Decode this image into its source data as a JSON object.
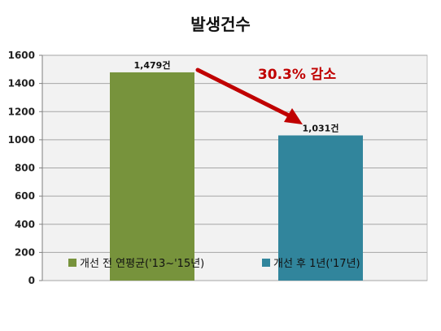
{
  "chart_data": {
    "type": "bar",
    "title": "발생건수",
    "categories": [
      "개선 전 연평균('13~'15년)",
      "개선 후 1년('17년)"
    ],
    "values": [
      1479,
      1031
    ],
    "data_labels": [
      "1,479건",
      "1,031건"
    ],
    "ylim": [
      0,
      1600
    ],
    "yticks": [
      "0",
      "200",
      "400",
      "600",
      "800",
      "1000",
      "1200",
      "1400",
      "1600"
    ],
    "grid": true,
    "legend_position": "bottom-inside",
    "colors": [
      "#77933c",
      "#31859c"
    ],
    "annotation": {
      "text": "30.3% 감소",
      "color": "#c00000"
    }
  }
}
